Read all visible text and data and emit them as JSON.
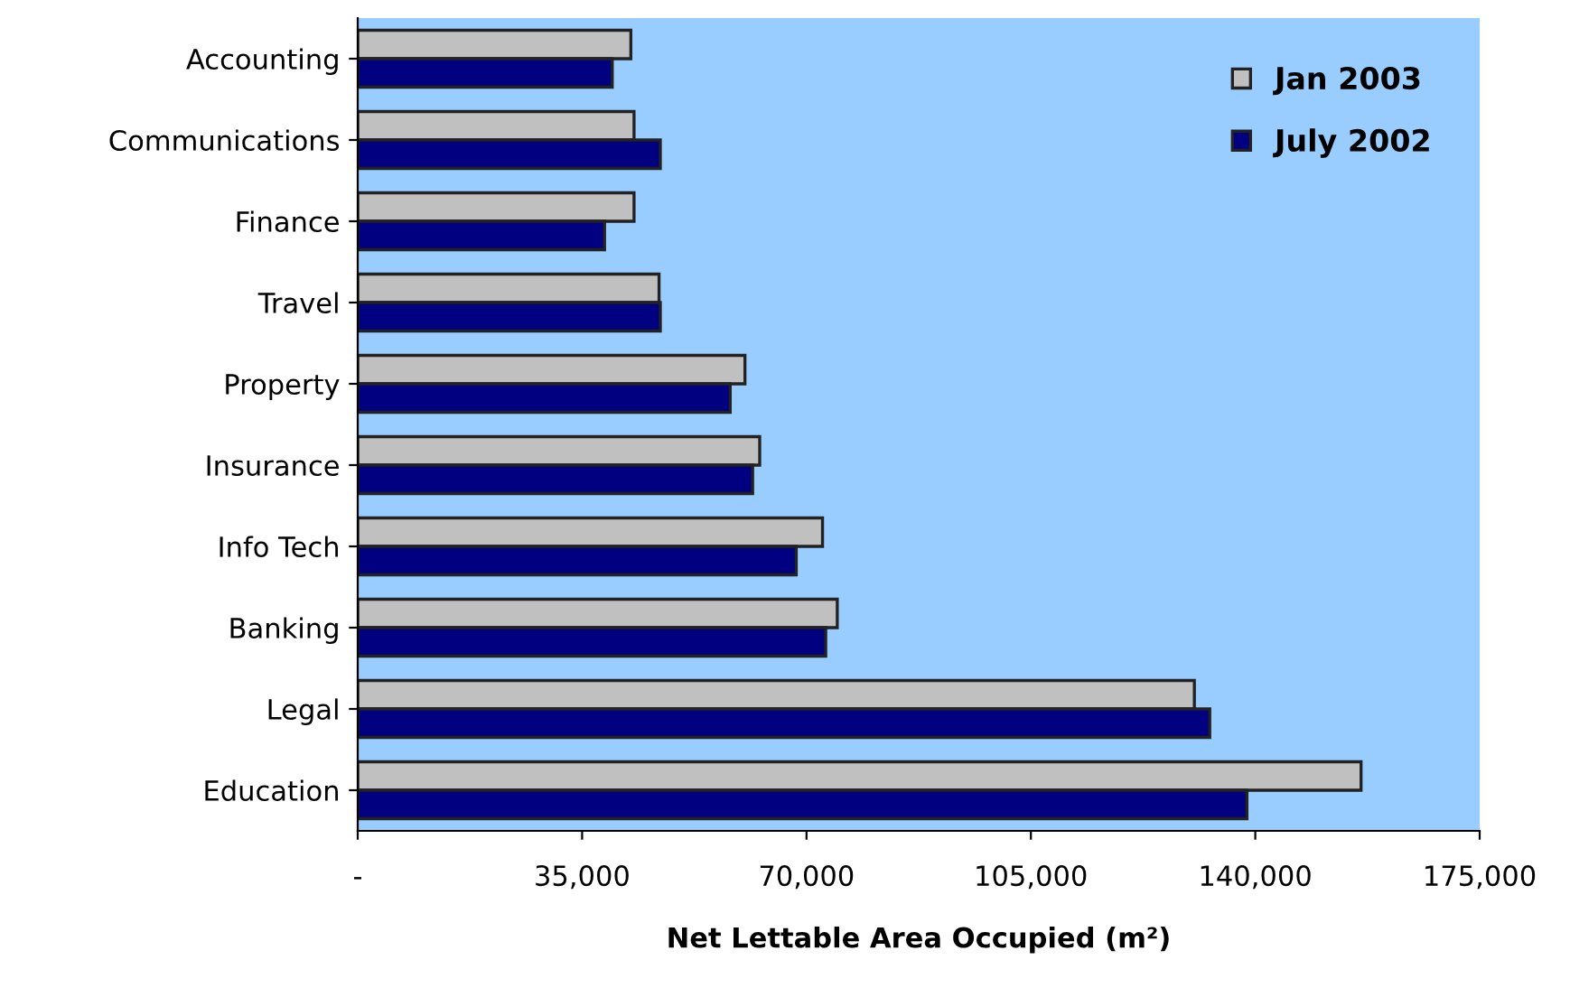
{
  "chart_data": {
    "type": "bar",
    "orientation": "horizontal",
    "xlabel": "Net Lettable Area Occupied (m²)",
    "categories": [
      "Accounting",
      "Communications",
      "Finance",
      "Travel",
      "Property",
      "Insurance",
      "Info Tech",
      "Banking",
      "Legal",
      "Education"
    ],
    "series": [
      {
        "name": "Jan 2003",
        "color": "#c0c0c0",
        "values": [
          42600,
          43100,
          43100,
          47000,
          60400,
          62700,
          72500,
          74800,
          130500,
          156500
        ]
      },
      {
        "name": "July 2002",
        "color": "#000080",
        "values": [
          39700,
          47200,
          38500,
          47200,
          58100,
          61600,
          68400,
          73000,
          132900,
          138700
        ]
      }
    ],
    "xlim": [
      0,
      175000
    ],
    "xticks": [
      {
        "value": 0,
        "label": "-"
      },
      {
        "value": 35000,
        "label": "35,000"
      },
      {
        "value": 70000,
        "label": "70,000"
      },
      {
        "value": 105000,
        "label": "105,000"
      },
      {
        "value": 140000,
        "label": "140,000"
      },
      {
        "value": 175000,
        "label": "175,000"
      }
    ],
    "grid": false,
    "legend": "top right"
  }
}
